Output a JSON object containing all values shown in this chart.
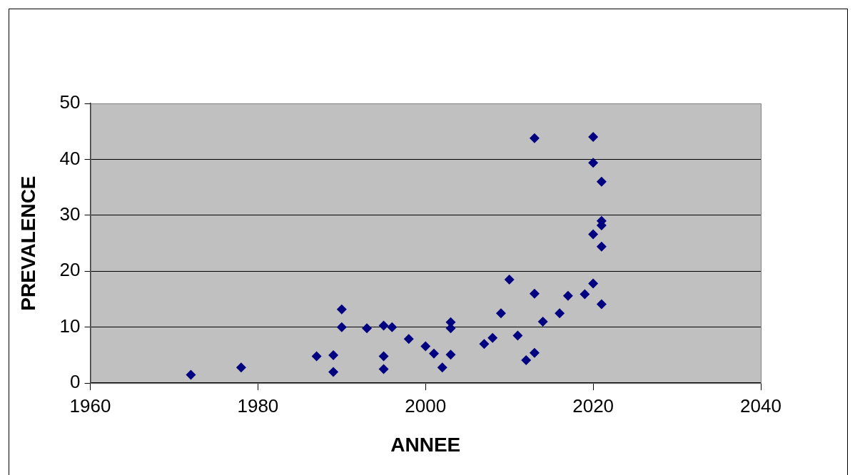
{
  "chart_data": {
    "type": "scatter",
    "xlabel": "ANNEE",
    "ylabel": "PREVALENCE",
    "x": [
      1972,
      1978,
      1987,
      1989,
      1989,
      1990,
      1990,
      1993,
      1995,
      1996,
      1995,
      1995,
      1998,
      2000,
      2001,
      2002,
      2003,
      2003,
      2003,
      2007,
      2008,
      2009,
      2010,
      2011,
      2012,
      2013,
      2013,
      2013,
      2014,
      2016,
      2017,
      2019,
      2020,
      2020,
      2020,
      2020,
      2021,
      2021,
      2021,
      2021,
      2021
    ],
    "values": [
      1.5,
      2.8,
      4.8,
      2,
      5,
      13.2,
      10,
      9.8,
      10.3,
      10,
      4.8,
      2.5,
      7.9,
      6.6,
      5.3,
      2.8,
      10.9,
      9.8,
      5.1,
      7,
      8.1,
      12.5,
      18.5,
      8.5,
      4.1,
      5.4,
      16,
      43.8,
      11,
      12.5,
      15.6,
      15.9,
      17.8,
      26.6,
      39.4,
      44,
      36,
      29,
      28.2,
      24.4,
      14.1
    ],
    "color": "#000080",
    "marker": "diamond",
    "xlim": [
      1960,
      2040
    ],
    "xticks": [
      1960,
      1980,
      2000,
      2020,
      2040
    ],
    "ylim": [
      0,
      50
    ],
    "yticks": [
      0,
      10,
      20,
      30,
      40,
      50
    ],
    "grid": "y",
    "legend": false
  }
}
